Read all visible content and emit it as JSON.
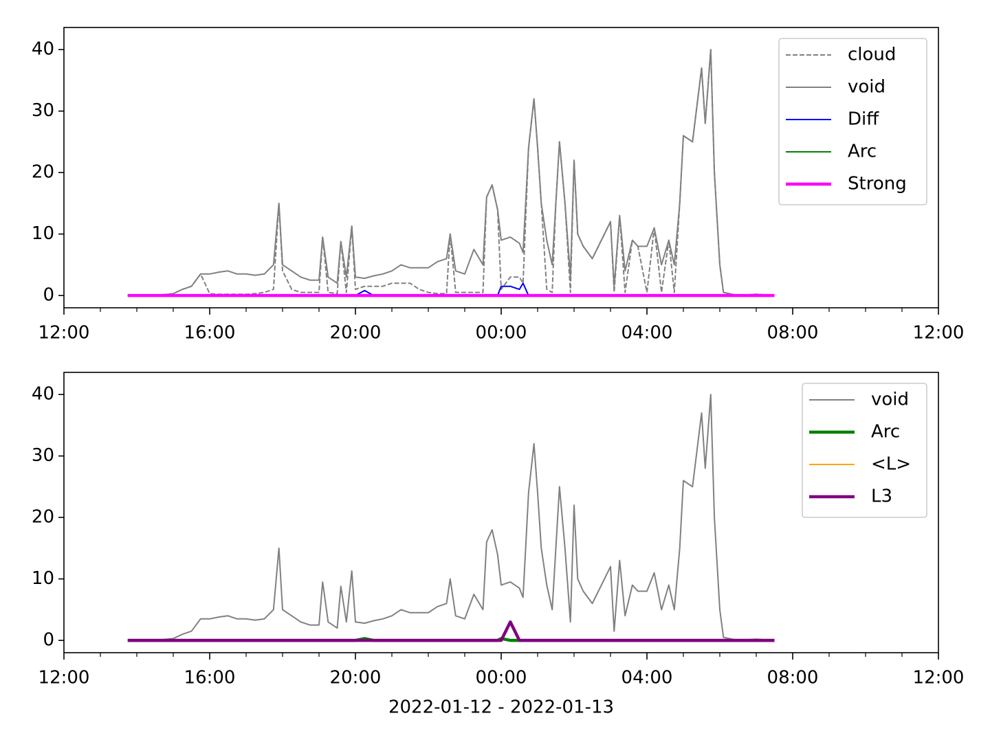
{
  "chart_data": [
    {
      "type": "line",
      "x": [
        1.75,
        2.5,
        3.0,
        3.25,
        3.5,
        3.75,
        4.0,
        4.25,
        4.5,
        4.75,
        5.0,
        5.25,
        5.5,
        5.75,
        5.9,
        6.0,
        6.25,
        6.5,
        6.75,
        7.0,
        7.1,
        7.25,
        7.5,
        7.6,
        7.75,
        7.9,
        8.0,
        8.25,
        8.5,
        8.75,
        9.0,
        9.25,
        9.5,
        9.75,
        10.0,
        10.25,
        10.5,
        10.6,
        10.75,
        11.0,
        11.25,
        11.5,
        11.6,
        11.75,
        11.9,
        12.0,
        12.25,
        12.5,
        12.6,
        12.75,
        12.9,
        13.0,
        13.1,
        13.25,
        13.4,
        13.5,
        13.6,
        13.75,
        13.9,
        14.0,
        14.1,
        14.25,
        14.5,
        14.75,
        15.0,
        15.1,
        15.25,
        15.4,
        15.6,
        15.75,
        16.0,
        16.2,
        16.4,
        16.6,
        16.75,
        16.9,
        17.0,
        17.25,
        17.5,
        17.6,
        17.75,
        17.85,
        18.0,
        18.1,
        18.5,
        19.0,
        19.5
      ],
      "xlim": [
        0,
        24
      ],
      "xticks": [
        {
          "value": 0,
          "label": "12:00"
        },
        {
          "value": 4,
          "label": "16:00"
        },
        {
          "value": 8,
          "label": "20:00"
        },
        {
          "value": 12,
          "label": "00:00"
        },
        {
          "value": 16,
          "label": "04:00"
        },
        {
          "value": 20,
          "label": "08:00"
        },
        {
          "value": 24,
          "label": "12:00"
        }
      ],
      "xminorticks": [
        1,
        2,
        3,
        5,
        6,
        7,
        9,
        10,
        11,
        13,
        14,
        15,
        17,
        18,
        19,
        21,
        22,
        23
      ],
      "ylim": [
        -2.0,
        43.6
      ],
      "yticks": [
        0,
        10,
        20,
        30,
        40
      ],
      "legend": "upper right",
      "series": [
        {
          "name": "cloud",
          "color": "#808080",
          "linestyle": "dashed",
          "linewidth": 2,
          "values": [
            0,
            0,
            0.3,
            1.0,
            1.5,
            3.5,
            0.3,
            0.2,
            0.2,
            0.2,
            0.2,
            0.3,
            0.5,
            1,
            15,
            4,
            1,
            0.5,
            0.5,
            0.5,
            9.5,
            0.5,
            0.3,
            8.8,
            0.5,
            11.3,
            1,
            1.5,
            1.5,
            1.5,
            2,
            2,
            2,
            1,
            0.5,
            0.3,
            0.3,
            10,
            0.5,
            0.5,
            0.5,
            0.5,
            16,
            18,
            14,
            1,
            3,
            3,
            2,
            24,
            32,
            24,
            15,
            1,
            0.5,
            15,
            25,
            15,
            0.5,
            22,
            10,
            8,
            6,
            9,
            12,
            0.5,
            13,
            0.5,
            9,
            8,
            0.5,
            11,
            0.5,
            9,
            0.5,
            15,
            26,
            25,
            37,
            28,
            40,
            20,
            5,
            0.5,
            0,
            0.2,
            0
          ]
        },
        {
          "name": "void",
          "color": "#808080",
          "linestyle": "solid",
          "linewidth": 2,
          "values": [
            0,
            0,
            0.3,
            1.0,
            1.5,
            3.5,
            3.5,
            3.8,
            4.0,
            3.5,
            3.5,
            3.3,
            3.5,
            5,
            15,
            5,
            4,
            3,
            2.5,
            2.5,
            9.5,
            3,
            2,
            8.8,
            3,
            11.3,
            3,
            2.8,
            3.2,
            3.5,
            4,
            5,
            4.5,
            4.5,
            4.5,
            5.5,
            6,
            10,
            4,
            3.5,
            7.5,
            5,
            16,
            18,
            14,
            9,
            9.5,
            8.5,
            7,
            24,
            32,
            24,
            15,
            9,
            5,
            15,
            25,
            15,
            3,
            22,
            10,
            8,
            6,
            9,
            12,
            1.5,
            13,
            4,
            9,
            8,
            8,
            11,
            5,
            9,
            5,
            15,
            26,
            25,
            37,
            28,
            40,
            20,
            5,
            0.5,
            0,
            0.2,
            0
          ]
        },
        {
          "name": "Diff",
          "color": "#0000ff",
          "linestyle": "solid",
          "linewidth": 2,
          "values": [
            0,
            0,
            0,
            0,
            0,
            0,
            0,
            0,
            0,
            0,
            0,
            0,
            0,
            0,
            0,
            0,
            0,
            0,
            0,
            0,
            0,
            0,
            0,
            0,
            0,
            0,
            0,
            0.8,
            0,
            0,
            0,
            0,
            0,
            0,
            0,
            0,
            0,
            0,
            0,
            0,
            0,
            0,
            0,
            0,
            0,
            1.5,
            1.5,
            1.0,
            2.0,
            0,
            0,
            0,
            0,
            0,
            0,
            0,
            0,
            0,
            0,
            0,
            0,
            0,
            0,
            0,
            0,
            0,
            0,
            0,
            0,
            0,
            0,
            0,
            0,
            0,
            0,
            0,
            0,
            0,
            0,
            0,
            0,
            0,
            0,
            0,
            0,
            0,
            0
          ]
        },
        {
          "name": "Arc",
          "color": "#008000",
          "linestyle": "solid",
          "linewidth": 2,
          "values": [
            0,
            0,
            0,
            0,
            0,
            0,
            0,
            0,
            0,
            0,
            0,
            0,
            0,
            0,
            0,
            0,
            0,
            0,
            0,
            0,
            0,
            0,
            0,
            0,
            0,
            0,
            0,
            0,
            0,
            0,
            0,
            0,
            0,
            0,
            0,
            0,
            0,
            0,
            0,
            0,
            0,
            0,
            0,
            0,
            0,
            0,
            0,
            0,
            0,
            0,
            0,
            0,
            0,
            0,
            0,
            0,
            0,
            0,
            0,
            0,
            0,
            0,
            0,
            0,
            0,
            0,
            0,
            0,
            0,
            0,
            0,
            0,
            0,
            0,
            0,
            0,
            0,
            0,
            0,
            0,
            0,
            0,
            0,
            0,
            0,
            0,
            0
          ]
        },
        {
          "name": "Strong",
          "color": "#ff00ff",
          "linestyle": "solid",
          "linewidth": 4.5,
          "values": [
            0,
            0,
            0,
            0,
            0,
            0,
            0,
            0,
            0,
            0,
            0,
            0,
            0,
            0,
            0,
            0,
            0,
            0,
            0,
            0,
            0,
            0,
            0,
            0,
            0,
            0,
            0,
            0,
            0,
            0,
            0,
            0,
            0,
            0,
            0,
            0,
            0,
            0,
            0,
            0,
            0,
            0,
            0,
            0,
            0,
            0,
            0,
            0,
            0,
            0,
            0,
            0,
            0,
            0,
            0,
            0,
            0,
            0,
            0,
            0,
            0,
            0,
            0,
            0,
            0,
            0,
            0,
            0,
            0,
            0,
            0,
            0,
            0,
            0,
            0,
            0,
            0,
            0,
            0,
            0,
            0,
            0,
            0,
            0,
            0,
            0,
            0
          ]
        }
      ]
    },
    {
      "type": "line",
      "xlabel": "2022-01-12 - 2022-01-13",
      "x": [
        1.75,
        2.5,
        3.0,
        3.25,
        3.5,
        3.75,
        4.0,
        4.25,
        4.5,
        4.75,
        5.0,
        5.25,
        5.5,
        5.75,
        5.9,
        6.0,
        6.25,
        6.5,
        6.75,
        7.0,
        7.1,
        7.25,
        7.5,
        7.6,
        7.75,
        7.9,
        8.0,
        8.25,
        8.5,
        8.75,
        9.0,
        9.25,
        9.5,
        9.75,
        10.0,
        10.25,
        10.5,
        10.6,
        10.75,
        11.0,
        11.25,
        11.5,
        11.6,
        11.75,
        11.9,
        12.0,
        12.25,
        12.5,
        12.6,
        12.75,
        12.9,
        13.0,
        13.1,
        13.25,
        13.4,
        13.5,
        13.6,
        13.75,
        13.9,
        14.0,
        14.1,
        14.25,
        14.5,
        14.75,
        15.0,
        15.1,
        15.25,
        15.4,
        15.6,
        15.75,
        16.0,
        16.2,
        16.4,
        16.6,
        16.75,
        16.9,
        17.0,
        17.25,
        17.5,
        17.6,
        17.75,
        17.85,
        18.0,
        18.1,
        18.5,
        19.0,
        19.5
      ],
      "xlim": [
        0,
        24
      ],
      "xticks": [
        {
          "value": 0,
          "label": "12:00"
        },
        {
          "value": 4,
          "label": "16:00"
        },
        {
          "value": 8,
          "label": "20:00"
        },
        {
          "value": 12,
          "label": "00:00"
        },
        {
          "value": 16,
          "label": "04:00"
        },
        {
          "value": 20,
          "label": "08:00"
        },
        {
          "value": 24,
          "label": "12:00"
        }
      ],
      "xminorticks": [
        1,
        2,
        3,
        5,
        6,
        7,
        9,
        10,
        11,
        13,
        14,
        15,
        17,
        18,
        19,
        21,
        22,
        23
      ],
      "ylim": [
        -2.0,
        43.6
      ],
      "yticks": [
        0,
        10,
        20,
        30,
        40
      ],
      "legend": "upper right",
      "series": [
        {
          "name": "void",
          "color": "#808080",
          "linestyle": "solid",
          "linewidth": 2,
          "values": [
            0,
            0,
            0.3,
            1.0,
            1.5,
            3.5,
            3.5,
            3.8,
            4.0,
            3.5,
            3.5,
            3.3,
            3.5,
            5,
            15,
            5,
            4,
            3,
            2.5,
            2.5,
            9.5,
            3,
            2,
            8.8,
            3,
            11.3,
            3,
            2.8,
            3.2,
            3.5,
            4,
            5,
            4.5,
            4.5,
            4.5,
            5.5,
            6,
            10,
            4,
            3.5,
            7.5,
            5,
            16,
            18,
            14,
            9,
            9.5,
            8.5,
            7,
            24,
            32,
            24,
            15,
            9,
            5,
            15,
            25,
            15,
            3,
            22,
            10,
            8,
            6,
            9,
            12,
            1.5,
            13,
            4,
            9,
            8,
            8,
            11,
            5,
            9,
            5,
            15,
            26,
            25,
            37,
            28,
            40,
            20,
            5,
            0.5,
            0,
            0.2,
            0
          ]
        },
        {
          "name": "Arc",
          "color": "#008000",
          "linestyle": "solid",
          "linewidth": 4.5,
          "values": [
            0,
            0,
            0,
            0,
            0,
            0,
            0,
            0,
            0,
            0,
            0,
            0,
            0,
            0,
            0,
            0,
            0,
            0,
            0,
            0,
            0,
            0,
            0,
            0,
            0,
            0,
            0,
            0.3,
            0,
            0,
            0,
            0,
            0,
            0,
            0,
            0,
            0,
            0,
            0,
            0,
            0,
            0,
            0,
            0,
            0,
            0.3,
            0,
            0,
            0,
            0,
            0,
            0,
            0,
            0,
            0,
            0,
            0,
            0,
            0,
            0,
            0,
            0,
            0,
            0,
            0,
            0,
            0,
            0,
            0,
            0,
            0,
            0,
            0,
            0,
            0,
            0,
            0,
            0,
            0,
            0,
            0,
            0,
            0,
            0,
            0,
            0,
            0
          ]
        },
        {
          "name": "<L>",
          "color": "#ffa500",
          "linestyle": "solid",
          "linewidth": 2,
          "values": [
            0,
            0,
            0,
            0,
            0,
            0,
            0,
            0,
            0,
            0,
            0,
            0,
            0,
            0,
            0,
            0,
            0,
            0,
            0,
            0,
            0,
            0,
            0,
            0,
            0,
            0,
            0,
            0,
            0,
            0,
            0,
            0,
            0,
            0,
            0,
            0,
            0,
            0,
            0,
            0,
            0,
            0,
            0,
            0,
            0,
            0,
            3,
            0,
            0,
            0,
            0,
            0,
            0,
            0,
            0,
            0,
            0,
            0,
            0,
            0,
            0,
            0,
            0,
            0,
            0,
            0,
            0,
            0,
            0,
            0,
            0,
            0,
            0,
            0,
            0,
            0,
            0,
            0,
            0,
            0,
            0,
            0,
            0,
            0,
            0,
            0,
            0
          ]
        },
        {
          "name": "L3",
          "color": "#800080",
          "linestyle": "solid",
          "linewidth": 4.5,
          "values": [
            0,
            0,
            0,
            0,
            0,
            0,
            0,
            0,
            0,
            0,
            0,
            0,
            0,
            0,
            0,
            0,
            0,
            0,
            0,
            0,
            0,
            0,
            0,
            0,
            0,
            0,
            0,
            0,
            0,
            0,
            0,
            0,
            0,
            0,
            0,
            0,
            0,
            0,
            0,
            0,
            0,
            0,
            0,
            0,
            0,
            0,
            3,
            0,
            0,
            0,
            0,
            0,
            0,
            0,
            0,
            0,
            0,
            0,
            0,
            0,
            0,
            0,
            0,
            0,
            0,
            0,
            0,
            0,
            0,
            0,
            0,
            0,
            0,
            0,
            0,
            0,
            0,
            0,
            0,
            0,
            0,
            0,
            0,
            0,
            0,
            0,
            0
          ]
        }
      ]
    }
  ]
}
